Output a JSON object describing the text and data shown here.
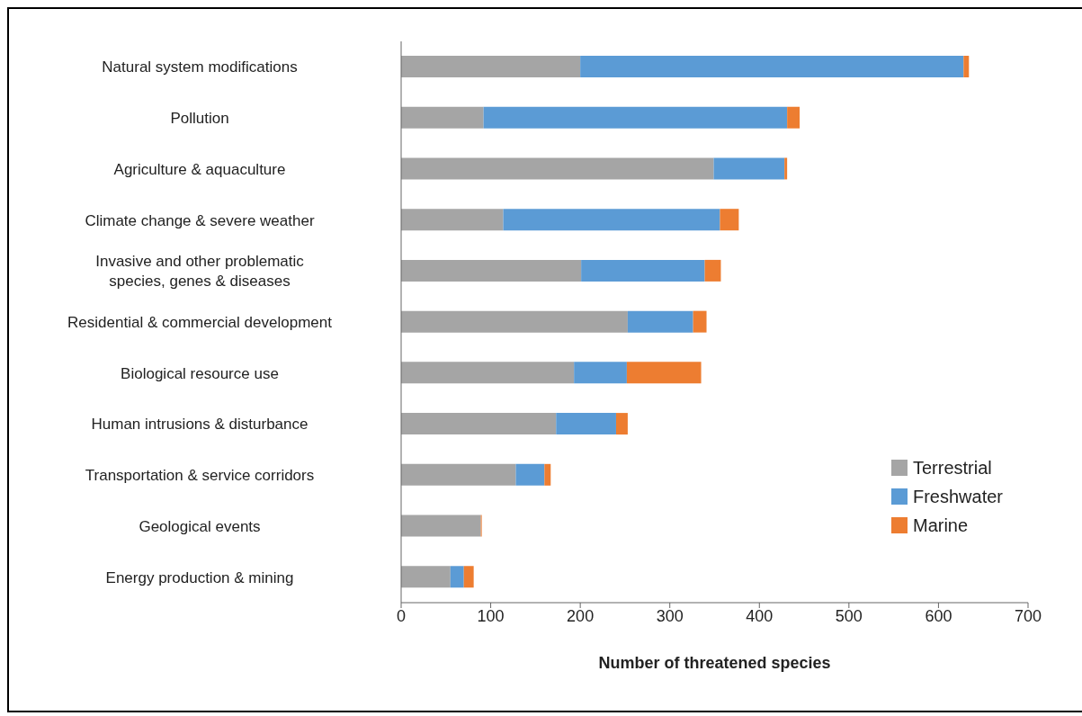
{
  "chart_data": {
    "type": "bar",
    "orientation": "horizontal",
    "stacked": true,
    "xlabel": "Number of threatened species",
    "categories": [
      "Natural system modifications",
      "Pollution",
      "Agriculture & aquaculture",
      "Climate change & severe weather",
      "Invasive and other problematic species, genes & diseases",
      "Residential & commercial development",
      "Biological resource use",
      "Human intrusions & disturbance",
      "Transportation & service corridors",
      "Geological events",
      "Energy production & mining"
    ],
    "series": [
      {
        "name": "Terrestrial",
        "color": "#a5a5a5",
        "values": [
          200,
          92,
          349,
          114,
          201,
          253,
          193,
          173,
          128,
          89,
          55
        ]
      },
      {
        "name": "Freshwater",
        "color": "#5b9bd5",
        "values": [
          428,
          339,
          79,
          242,
          138,
          73,
          59,
          67,
          32,
          0,
          15
        ]
      },
      {
        "name": "Marine",
        "color": "#ed7d31",
        "values": [
          6,
          14,
          3,
          21,
          18,
          15,
          83,
          13,
          7,
          1,
          11
        ]
      }
    ],
    "xlim": [
      0,
      700
    ],
    "xticks": [
      0,
      100,
      200,
      300,
      400,
      500,
      600,
      700
    ],
    "grid": false,
    "legend": "bottom right"
  }
}
